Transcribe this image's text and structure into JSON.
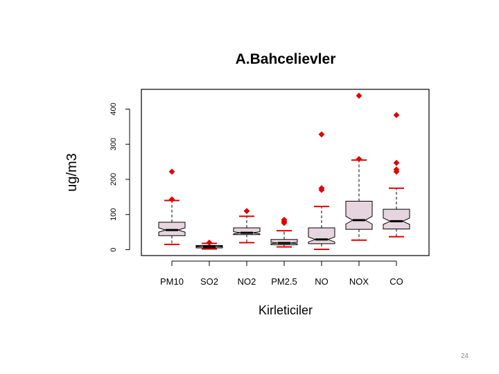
{
  "slide": {
    "page_number": "24"
  },
  "chart_data": {
    "type": "boxplot",
    "title": "A.Bahcelievler",
    "xlabel": "Kirleticiler",
    "ylabel": "ug/m3",
    "ylim": [
      -10,
      450
    ],
    "yticks": [
      0,
      100,
      200,
      300,
      400
    ],
    "notched": true,
    "box_fill": "#e6d5de",
    "median_color": "#000000",
    "whisker_color": "#000000",
    "cap_color": "#e00000",
    "outlier_color": "#e00000",
    "categories": [
      "PM10",
      "SO2",
      "NO2",
      "PM2.5",
      "NO",
      "NOX",
      "CO"
    ],
    "boxes": [
      {
        "name": "PM10",
        "whisker_low": 15,
        "q1": 40,
        "median": 56,
        "q3": 78,
        "whisker_high": 140,
        "notch_low": 50,
        "notch_high": 62,
        "outliers": [
          143,
          222
        ]
      },
      {
        "name": "SO2",
        "whisker_low": 2,
        "q1": 5,
        "median": 9,
        "q3": 12,
        "whisker_high": 18,
        "notch_low": 8,
        "notch_high": 10,
        "outliers": [
          20
        ]
      },
      {
        "name": "NO2",
        "whisker_low": 20,
        "q1": 43,
        "median": 48,
        "q3": 62,
        "whisker_high": 95,
        "notch_low": 45,
        "notch_high": 51,
        "outliers": [
          110
        ]
      },
      {
        "name": "PM2.5",
        "whisker_low": 8,
        "q1": 14,
        "median": 19,
        "q3": 29,
        "whisker_high": 54,
        "notch_low": 17,
        "notch_high": 21,
        "outliers": [
          76,
          80,
          85
        ]
      },
      {
        "name": "NO",
        "whisker_low": 1,
        "q1": 17,
        "median": 29,
        "q3": 62,
        "whisker_high": 123,
        "notch_low": 22,
        "notch_high": 36,
        "outliers": [
          170,
          175,
          328
        ]
      },
      {
        "name": "NOX",
        "whisker_low": 27,
        "q1": 58,
        "median": 84,
        "q3": 138,
        "whisker_high": 255,
        "notch_low": 73,
        "notch_high": 95,
        "outliers": [
          258,
          438
        ]
      },
      {
        "name": "CO",
        "whisker_low": 37,
        "q1": 59,
        "median": 81,
        "q3": 115,
        "whisker_high": 175,
        "notch_low": 72,
        "notch_high": 90,
        "outliers": [
          222,
          228,
          247,
          383
        ]
      }
    ]
  }
}
